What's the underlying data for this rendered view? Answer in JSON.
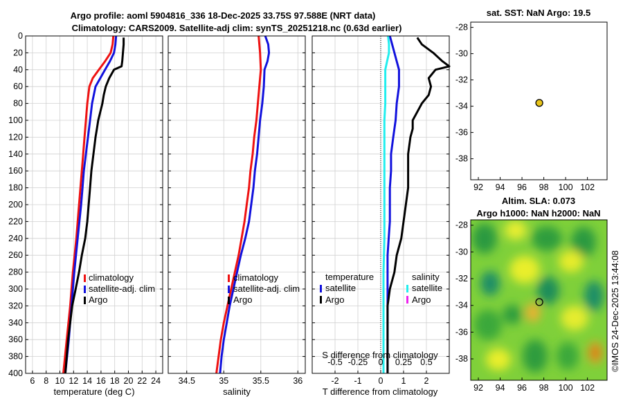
{
  "title": {
    "line1": "Argo profile: aoml 5904816_336 18-Dec-2025 33.75S 97.588E (NRT data)",
    "line2": "Climatology: CARS2009. Satellite-adj clim: synTS_20251218.nc (0.63d earlier)"
  },
  "colors": {
    "red": "#ee1111",
    "blue": "#1111dd",
    "black": "#000000",
    "cyan": "#22eeee",
    "magenta": "#ee22ee"
  },
  "chart_data": [
    {
      "id": "temperature",
      "type": "line",
      "xlabel": "temperature (deg C)",
      "ylabel": "",
      "xlim": [
        5,
        25
      ],
      "ylim": [
        400,
        0
      ],
      "xticks": [
        6,
        8,
        10,
        12,
        14,
        16,
        18,
        20,
        22,
        24
      ],
      "yticks": [
        0,
        20,
        40,
        60,
        80,
        100,
        120,
        140,
        160,
        180,
        200,
        220,
        240,
        260,
        280,
        300,
        320,
        340,
        360,
        380,
        400
      ],
      "legend": [
        "climatology",
        "satellite-adj. clim",
        "Argo"
      ],
      "series": [
        {
          "name": "climatology",
          "color": "red",
          "depth": [
            0,
            10,
            20,
            30,
            40,
            50,
            60,
            80,
            100,
            120,
            140,
            160,
            180,
            200,
            240,
            280,
            320,
            360,
            400
          ],
          "values": [
            17.8,
            17.7,
            17.4,
            16.6,
            15.7,
            14.8,
            14.3,
            14.0,
            13.8,
            13.6,
            13.4,
            13.2,
            13.0,
            12.8,
            12.4,
            11.9,
            11.5,
            11.0,
            10.5
          ]
        },
        {
          "name": "satellite-adj. clim",
          "color": "blue",
          "depth": [
            0,
            10,
            20,
            30,
            40,
            50,
            60,
            80,
            100,
            120,
            140,
            160,
            180,
            200,
            240,
            280,
            320,
            360,
            400
          ],
          "values": [
            18.2,
            18.1,
            17.9,
            17.3,
            16.6,
            15.9,
            15.2,
            14.7,
            14.4,
            14.1,
            13.8,
            13.5,
            13.3,
            13.1,
            12.6,
            12.1,
            11.7,
            11.3,
            10.8
          ]
        },
        {
          "name": "Argo",
          "color": "black",
          "depth": [
            2,
            10,
            20,
            30,
            36,
            40,
            50,
            60,
            70,
            80,
            90,
            100,
            110,
            120,
            140,
            160,
            180,
            200,
            220,
            240,
            260,
            280,
            300,
            320,
            340,
            360,
            380,
            400
          ],
          "values": [
            19.3,
            19.3,
            19.2,
            19.1,
            19.0,
            17.9,
            17.2,
            16.7,
            16.4,
            16.2,
            15.9,
            15.6,
            15.4,
            15.2,
            14.9,
            14.6,
            14.4,
            14.2,
            14.0,
            13.7,
            13.2,
            12.8,
            12.3,
            11.8,
            11.5,
            11.2,
            11.0,
            10.8
          ]
        }
      ]
    },
    {
      "id": "salinity",
      "type": "line",
      "xlabel": "salinity",
      "ylabel": "",
      "xlim": [
        34.25,
        36.1
      ],
      "ylim": [
        400,
        0
      ],
      "xticks": [
        34.5,
        35,
        35.5,
        36
      ],
      "legend": [
        "climatology",
        "satellite-adj. clim",
        "Argo"
      ],
      "series": [
        {
          "name": "climatology",
          "color": "red",
          "depth": [
            0,
            20,
            40,
            60,
            80,
            100,
            120,
            140,
            160,
            180,
            200,
            220,
            240,
            260,
            280,
            300,
            320,
            340,
            360,
            380,
            400
          ],
          "values": [
            35.47,
            35.49,
            35.5,
            35.48,
            35.46,
            35.44,
            35.41,
            35.39,
            35.36,
            35.34,
            35.31,
            35.28,
            35.24,
            35.2,
            35.15,
            35.1,
            35.05,
            35.0,
            34.96,
            34.93,
            34.9
          ]
        },
        {
          "name": "satellite-adj. clim",
          "color": "blue",
          "depth": [
            0,
            10,
            20,
            30,
            40,
            60,
            80,
            100,
            120,
            140,
            160,
            180,
            200,
            220,
            240,
            260,
            280,
            300,
            320,
            340,
            360,
            380,
            400
          ],
          "values": [
            35.56,
            35.6,
            35.61,
            35.59,
            35.55,
            35.54,
            35.52,
            35.49,
            35.47,
            35.45,
            35.42,
            35.4,
            35.37,
            35.34,
            35.29,
            35.23,
            35.18,
            35.13,
            35.08,
            35.04,
            35.0,
            34.97,
            34.95
          ]
        },
        {
          "name": "Argo",
          "color": "black",
          "depth": [],
          "values": []
        }
      ]
    },
    {
      "id": "difference",
      "type": "line",
      "xlabel": "T difference from climatology",
      "ylabel": "",
      "xlabel_top": "S difference from climatology",
      "xlim": [
        -3,
        3
      ],
      "ylim": [
        400,
        0
      ],
      "xticks": [
        -2,
        -1,
        0,
        1,
        2
      ],
      "xticks_s": [
        -0.5,
        -0.25,
        0,
        0.25,
        0.5
      ],
      "xtick_labels_s": [
        "-0.5",
        "-0.25",
        "0",
        "0.25",
        "0.5"
      ],
      "legend_t_title": "temperature",
      "legend_s_title": "salinity",
      "legend_t": [
        "satellite",
        "Argo"
      ],
      "legend_s": [
        "satellite",
        "Argo"
      ],
      "series": [
        {
          "name": "T satellite",
          "color": "blue",
          "depth": [
            0,
            10,
            20,
            30,
            40,
            60,
            80,
            100,
            120,
            140,
            160,
            180,
            200,
            220,
            240,
            260,
            280,
            300,
            320,
            340,
            360,
            380,
            400
          ],
          "values": [
            0.4,
            0.5,
            0.6,
            0.7,
            0.8,
            0.8,
            0.7,
            0.65,
            0.55,
            0.45,
            0.45,
            0.4,
            0.4,
            0.4,
            0.35,
            0.3,
            0.3,
            0.3,
            0.3,
            0.3,
            0.3,
            0.3,
            0.3
          ]
        },
        {
          "name": "T Argo",
          "color": "black",
          "depth": [
            2,
            10,
            20,
            30,
            36,
            40,
            50,
            60,
            70,
            80,
            90,
            100,
            110,
            120,
            140,
            160,
            180,
            200,
            220,
            240,
            260,
            280,
            300,
            320,
            340,
            360,
            380,
            400
          ],
          "values": [
            1.6,
            1.8,
            2.3,
            2.7,
            3.0,
            2.4,
            2.1,
            2.2,
            2.1,
            1.8,
            1.6,
            1.4,
            1.4,
            1.3,
            1.2,
            1.2,
            1.2,
            1.1,
            1.0,
            0.9,
            0.7,
            0.6,
            0.4,
            0.3,
            0.3,
            0.3,
            0.3,
            0.3
          ]
        },
        {
          "name": "S satellite",
          "color": "cyan",
          "depth": [
            0,
            10,
            20,
            30,
            40,
            60,
            80,
            100,
            120,
            140,
            160,
            180,
            200,
            240,
            280,
            320,
            360,
            400
          ],
          "values": [
            0.08,
            0.09,
            0.09,
            0.07,
            0.05,
            0.05,
            0.05,
            0.04,
            0.04,
            0.04,
            0.04,
            0.04,
            0.04,
            0.04,
            0.03,
            0.03,
            0.03,
            0.03
          ]
        },
        {
          "name": "S Argo",
          "color": "magenta",
          "depth": [],
          "values": []
        }
      ]
    },
    {
      "id": "sst_map",
      "type": "scatter",
      "title": "sat. SST: NaN Argo: 19.5",
      "xlim": [
        91.3,
        103.8
      ],
      "ylim": [
        -39.6,
        -27.6
      ],
      "xticks": [
        92,
        94,
        96,
        98,
        100,
        102
      ],
      "yticks": [
        -28,
        -30,
        -32,
        -34,
        -36,
        -38
      ],
      "xtick_labels": [
        "92",
        "94",
        "96",
        "98",
        "100",
        "102"
      ],
      "ytick_labels": [
        "-28",
        "-30",
        "-32",
        "-34",
        "-36",
        "-38"
      ],
      "points": [
        {
          "x": 97.588,
          "y": -33.75,
          "color": "#e8c41a"
        }
      ]
    },
    {
      "id": "sla_map",
      "type": "heatmap",
      "title_line1": "Altim. SLA: 0.073",
      "title_line2": "Argo h1000: NaN h2000: NaN",
      "xlim": [
        91.3,
        103.8
      ],
      "ylim": [
        -39.6,
        -27.6
      ],
      "xticks": [
        92,
        94,
        96,
        98,
        100,
        102
      ],
      "yticks": [
        -28,
        -30,
        -32,
        -34,
        -36,
        -38
      ],
      "xtick_labels": [
        "92",
        "94",
        "96",
        "98",
        "100",
        "102"
      ],
      "ytick_labels": [
        "-28",
        "-30",
        "-32",
        "-34",
        "-36",
        "-38"
      ],
      "points": [
        {
          "x": 97.588,
          "y": -33.75
        }
      ]
    }
  ],
  "credit": "©IMOS 24-Dec-2025 13:44:08"
}
